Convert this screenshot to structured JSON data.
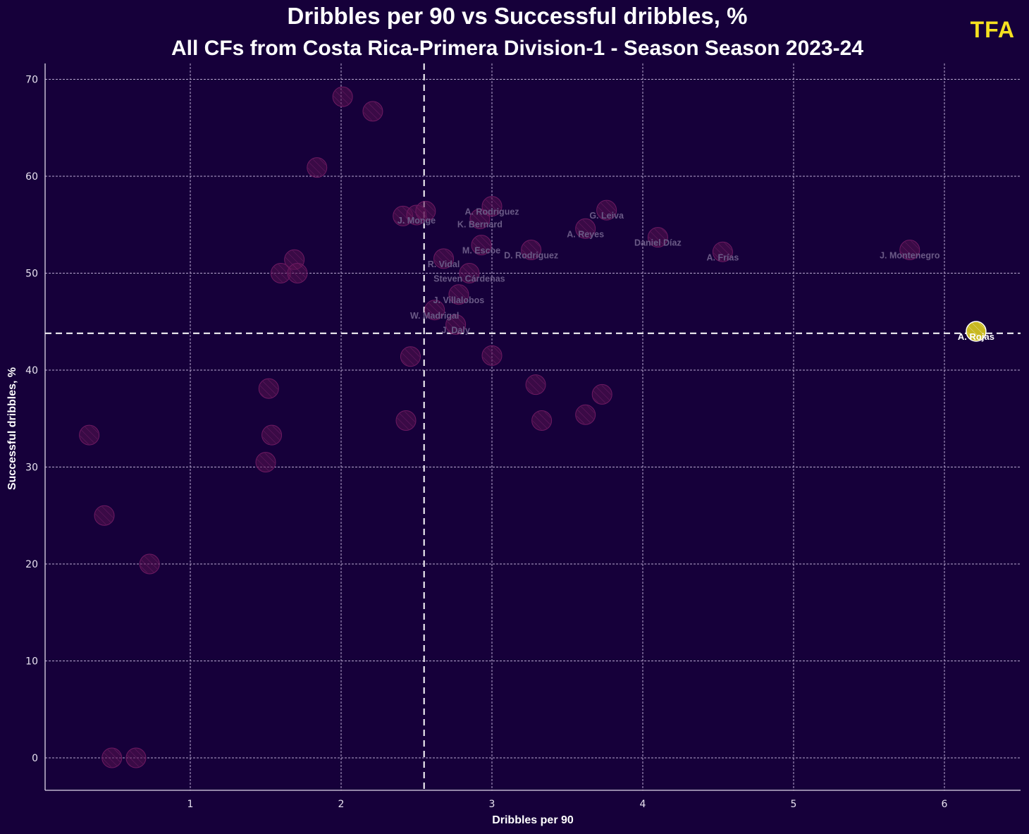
{
  "chart_data": {
    "type": "scatter",
    "title": "Dribbles per 90 vs Successful dribbles, %",
    "subtitle": "All CFs from Costa Rica-Primera Division-1 - Season Season 2023-24",
    "xlabel": "Dribbles per 90",
    "ylabel": "Successful dribbles, %",
    "xlim": [
      0,
      6.5
    ],
    "ylim": [
      -3.3,
      71.6
    ],
    "xticks": [
      1,
      2,
      3,
      4,
      5,
      6
    ],
    "yticks": [
      0,
      10,
      20,
      30,
      40,
      50,
      60,
      70
    ],
    "grid": true,
    "mean_x": 2.55,
    "mean_y": 43.8,
    "highlight_color": "#c8b820",
    "point_color": "#5a1350",
    "points": [
      {
        "x": 2.01,
        "y": 68.2,
        "label": ""
      },
      {
        "x": 2.21,
        "y": 66.7,
        "label": ""
      },
      {
        "x": 1.84,
        "y": 60.9,
        "label": ""
      },
      {
        "x": 1.69,
        "y": 51.4,
        "label": ""
      },
      {
        "x": 1.6,
        "y": 50.0,
        "label": ""
      },
      {
        "x": 1.71,
        "y": 50.0,
        "label": ""
      },
      {
        "x": 2.41,
        "y": 55.9,
        "label": ""
      },
      {
        "x": 2.5,
        "y": 56.0,
        "label": "J. Monge"
      },
      {
        "x": 2.56,
        "y": 56.4,
        "label": ""
      },
      {
        "x": 3.0,
        "y": 56.9,
        "label": "A. Rodriguez"
      },
      {
        "x": 2.92,
        "y": 55.6,
        "label": "K. Bernard"
      },
      {
        "x": 3.76,
        "y": 56.5,
        "label": "G. Leiva"
      },
      {
        "x": 3.62,
        "y": 54.6,
        "label": "A. Reyes"
      },
      {
        "x": 4.1,
        "y": 53.7,
        "label": "Daniel Díaz"
      },
      {
        "x": 2.93,
        "y": 52.9,
        "label": "M. Escoe"
      },
      {
        "x": 3.26,
        "y": 52.4,
        "label": "D. Rodriguez"
      },
      {
        "x": 4.53,
        "y": 52.2,
        "label": "A. Frías"
      },
      {
        "x": 5.77,
        "y": 52.4,
        "label": "J. Montenegro"
      },
      {
        "x": 2.68,
        "y": 51.5,
        "label": "R. Vidal"
      },
      {
        "x": 2.85,
        "y": 50.0,
        "label": "Steven Cárdenas"
      },
      {
        "x": 2.78,
        "y": 47.8,
        "label": "J. Villalobos"
      },
      {
        "x": 2.62,
        "y": 46.2,
        "label": "W. Madrigal"
      },
      {
        "x": 2.76,
        "y": 44.7,
        "label": "J. Daly"
      },
      {
        "x": 6.21,
        "y": 44.0,
        "label": "A. Rojas",
        "highlight": true
      },
      {
        "x": 2.46,
        "y": 41.4,
        "label": ""
      },
      {
        "x": 3.0,
        "y": 41.5,
        "label": ""
      },
      {
        "x": 3.29,
        "y": 38.5,
        "label": ""
      },
      {
        "x": 3.73,
        "y": 37.5,
        "label": ""
      },
      {
        "x": 3.62,
        "y": 35.4,
        "label": ""
      },
      {
        "x": 3.33,
        "y": 34.8,
        "label": ""
      },
      {
        "x": 2.43,
        "y": 34.8,
        "label": ""
      },
      {
        "x": 1.52,
        "y": 38.1,
        "label": ""
      },
      {
        "x": 1.54,
        "y": 33.3,
        "label": ""
      },
      {
        "x": 1.5,
        "y": 30.5,
        "label": ""
      },
      {
        "x": 0.33,
        "y": 33.3,
        "label": ""
      },
      {
        "x": 0.43,
        "y": 25.0,
        "label": ""
      },
      {
        "x": 0.73,
        "y": 20.0,
        "label": ""
      },
      {
        "x": 0.48,
        "y": 0.0,
        "label": ""
      },
      {
        "x": 0.64,
        "y": 0.0,
        "label": ""
      }
    ]
  },
  "branding": {
    "logo": "TFA"
  }
}
